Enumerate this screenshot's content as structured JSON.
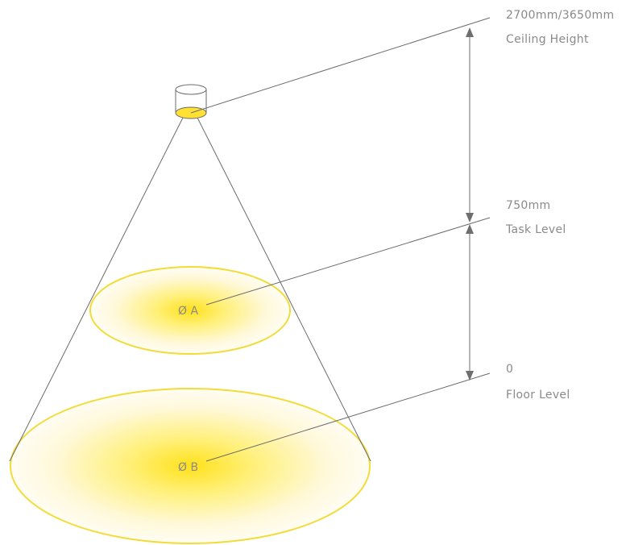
{
  "levels": {
    "ceiling": {
      "value": "2700mm/3650mm",
      "name": "Ceiling Height"
    },
    "task": {
      "value": "750mm",
      "name": "Task Level"
    },
    "floor": {
      "value": "0",
      "name": "Floor Level"
    }
  },
  "diameters": {
    "a": "Ø A",
    "b": "Ø B"
  },
  "colors": {
    "light_center": "#ffe11a",
    "light_edge": "#fffaf0",
    "pool_outline": "#f2dc3a",
    "line": "#6b6b6b",
    "text": "#8a8a8a",
    "lens": "#ffe033"
  }
}
